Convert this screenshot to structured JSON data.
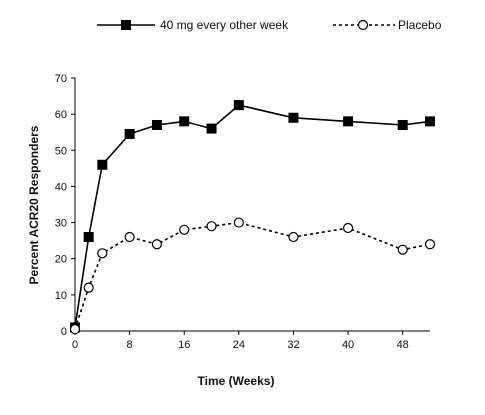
{
  "chart_data": {
    "type": "line",
    "title": "",
    "xlabel": "Time (Weeks)",
    "ylabel": "Percent ACR20 Responders",
    "xlim": [
      0,
      52
    ],
    "ylim": [
      0,
      70
    ],
    "x_ticks": [
      0,
      8,
      16,
      24,
      32,
      40,
      48
    ],
    "y_ticks": [
      0,
      10,
      20,
      30,
      40,
      50,
      60,
      70
    ],
    "grid": false,
    "legend_position": "top",
    "series": [
      {
        "name": "40 mg every other week",
        "line_style": "solid",
        "marker": "filled-square",
        "color": "#000000",
        "x": [
          0,
          2,
          4,
          8,
          12,
          16,
          20,
          24,
          32,
          40,
          48,
          52
        ],
        "y": [
          1,
          26,
          46,
          54.5,
          57,
          58,
          56,
          62.5,
          59,
          58,
          57,
          58
        ]
      },
      {
        "name": "Placebo",
        "line_style": "dotted",
        "marker": "open-circle",
        "color": "#000000",
        "x": [
          0,
          2,
          4,
          8,
          12,
          16,
          20,
          24,
          32,
          40,
          48,
          52
        ],
        "y": [
          0.5,
          12,
          21.5,
          26,
          24,
          28,
          29,
          30,
          26,
          28.5,
          22.5,
          24
        ]
      }
    ]
  }
}
